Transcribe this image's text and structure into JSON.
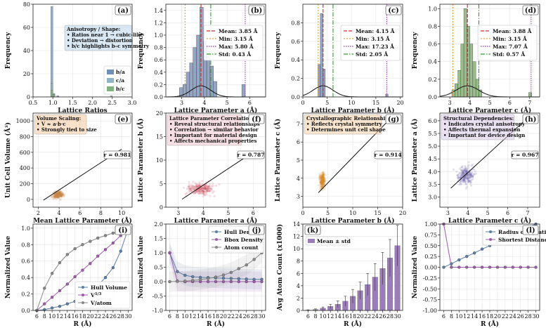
{
  "chart_data": [
    {
      "id": "a",
      "type": "histogram",
      "panel_label": "(a)",
      "xlabel": "Lattice Ratios",
      "ylabel": "Frequency",
      "xlim": [
        0.5,
        3.0
      ],
      "ylim": [
        0,
        80
      ],
      "xticks": [
        "0.5",
        "1.0",
        "1.5",
        "2.0",
        "2.5",
        "3.0"
      ],
      "yticks": [
        "0",
        "20",
        "40",
        "60",
        "80"
      ],
      "series": [
        {
          "name": "b/a",
          "color": "#6f8fb8",
          "bins": [
            [
              0.95,
              1.0,
              78
            ],
            [
              1.0,
              1.05,
              3
            ],
            [
              1.1,
              1.15,
              1
            ]
          ]
        },
        {
          "name": "c/a",
          "color": "#8fb5c7",
          "bins": [
            [
              0.95,
              1.0,
              12
            ],
            [
              1.0,
              1.05,
              2
            ]
          ]
        },
        {
          "name": "b/c",
          "color": "#7fb27f",
          "bins": [
            [
              0.95,
              1.0,
              6
            ],
            [
              1.0,
              1.05,
              2
            ],
            [
              2.45,
              2.5,
              1
            ]
          ]
        }
      ],
      "annotation_title": "Anisotropy / Shape:",
      "annotation_lines": [
        "• Ratios near 1 → cubic-like",
        "• Deviation → distortion",
        "• b/c highlights b–c symmetry"
      ]
    },
    {
      "id": "b",
      "type": "histogram",
      "panel_label": "(b)",
      "xlabel": "Lattice Parameter a (Å)",
      "ylabel": "Frequency",
      "xlim": [
        2.3,
        6.7
      ],
      "ylim": [
        0,
        1.5
      ],
      "xticks": [
        "3",
        "4",
        "5",
        "6"
      ],
      "yticks": [
        "0.0",
        "0.2",
        "0.4",
        "0.6",
        "0.8",
        "1.0",
        "1.2",
        "1.4"
      ],
      "bar_color": "#7b8fb5",
      "bins": [
        [
          2.9,
          3.05,
          0.15
        ],
        [
          3.05,
          3.2,
          0.2
        ],
        [
          3.2,
          3.35,
          0.4
        ],
        [
          3.35,
          3.5,
          0.55
        ],
        [
          3.5,
          3.65,
          0.8
        ],
        [
          3.65,
          3.8,
          1.0
        ],
        [
          3.8,
          3.95,
          1.45
        ],
        [
          3.95,
          4.1,
          0.9
        ],
        [
          4.1,
          4.25,
          0.75
        ],
        [
          4.25,
          4.4,
          0.5
        ],
        [
          4.4,
          4.55,
          0.25
        ],
        [
          5.65,
          5.8,
          0.2
        ]
      ],
      "mean": 3.85,
      "min": 3.15,
      "max": 5.8,
      "std": 0.43,
      "legend": [
        "Mean: 3.85 Å",
        "Min: 3.15 Å",
        "Max: 5.80 Å",
        "Std: 0.43 Å"
      ]
    },
    {
      "id": "c",
      "type": "histogram",
      "panel_label": "(c)",
      "xlabel": "Lattice Parameter b (Å)",
      "ylabel": "Frequency",
      "xlim": [
        0,
        20.5
      ],
      "ylim": [
        0,
        1.0
      ],
      "xticks": [
        "0",
        "5",
        "10",
        "15",
        "20"
      ],
      "yticks": [
        "0.0",
        "0.2",
        "0.4",
        "0.6",
        "0.8"
      ],
      "bar_color": "#7b8fb5",
      "bins": [
        [
          3.1,
          3.6,
          0.35
        ],
        [
          3.6,
          4.1,
          0.9
        ],
        [
          4.1,
          4.6,
          0.3
        ],
        [
          17.0,
          17.5,
          0.03
        ]
      ],
      "mean": 4.15,
      "min": 3.15,
      "max": 17.23,
      "std": 2.05,
      "legend": [
        "Mean: 4.15 Å",
        "Min: 3.15 Å",
        "Max: 17.23 Å",
        "Std: 2.05 Å"
      ]
    },
    {
      "id": "d",
      "type": "histogram",
      "panel_label": "(d)",
      "xlabel": "Lattice Parameter c (Å)",
      "ylabel": "Frequency",
      "xlim": [
        2.5,
        7.5
      ],
      "ylim": [
        0,
        1.05
      ],
      "xticks": [
        "3",
        "4",
        "5",
        "6",
        "7"
      ],
      "yticks": [
        "0.0",
        "0.2",
        "0.4",
        "0.6",
        "0.8",
        "1.0"
      ],
      "bar_color": "#7fae6f",
      "bins": [
        [
          3.1,
          3.25,
          0.08
        ],
        [
          3.25,
          3.4,
          0.15
        ],
        [
          3.4,
          3.55,
          0.3
        ],
        [
          3.55,
          3.7,
          0.6
        ],
        [
          3.7,
          3.85,
          1.0
        ],
        [
          3.85,
          4.0,
          0.8
        ],
        [
          4.0,
          4.15,
          0.6
        ],
        [
          4.15,
          4.3,
          0.4
        ],
        [
          4.3,
          4.45,
          0.2
        ],
        [
          4.45,
          4.6,
          0.08
        ],
        [
          6.95,
          7.1,
          0.05
        ]
      ],
      "mean": 3.88,
      "min": 3.15,
      "max": 7.07,
      "std": 0.57,
      "legend": [
        "Mean: 3.88 Å",
        "Min: 3.15 Å",
        "Max: 7.07 Å",
        "Std: 0.57 Å"
      ]
    },
    {
      "id": "e",
      "type": "scatter",
      "panel_label": "(e)",
      "xlabel": "Mean Lattice Parameter (Å)",
      "ylabel": "Unit Cell Volume (Å³)",
      "xlim": [
        1.5,
        11
      ],
      "ylim": [
        -100,
        1100
      ],
      "xticks": [
        "2",
        "4",
        "6",
        "8",
        "10"
      ],
      "yticks": [
        "0",
        "200",
        "400",
        "600",
        "800",
        "1000"
      ],
      "point_color": "#c9854a",
      "cluster": {
        "x": 3.9,
        "y": 60,
        "sx": 0.35,
        "sy": 25
      },
      "fit": [
        [
          2.5,
          -10
        ],
        [
          10,
          640
        ]
      ],
      "r_label": "r = 0.981",
      "annotation_title": "Volume Scaling:",
      "annotation_lines": [
        "• V ≈ a·b·c",
        "• Strongly tied to size"
      ]
    },
    {
      "id": "f",
      "type": "scatter",
      "panel_label": "(f)",
      "xlabel": "Lattice Parameter a (Å)",
      "ylabel": "Lattice Parameter b (Å)",
      "xlim": [
        2.5,
        6.5
      ],
      "ylim": [
        0,
        20
      ],
      "xticks": [
        "3",
        "4",
        "5",
        "6"
      ],
      "yticks": [
        "0",
        "5",
        "10",
        "15",
        "20"
      ],
      "point_color": "#c94a5a",
      "cluster": {
        "x": 3.9,
        "y": 3.9,
        "sx": 0.4,
        "sy": 0.4
      },
      "fit": [
        [
          3.15,
          1.7
        ],
        [
          5.8,
          11.0
        ]
      ],
      "r_label": "r = 0.787",
      "annotation_title": "Lattice Parameter Correlations:",
      "annotation_lines": [
        "• Reveal structural relationships",
        "• Correlation → similar behavior",
        "• Important for material design",
        "• Affects mechanical properties"
      ]
    },
    {
      "id": "g",
      "type": "scatter",
      "panel_label": "(g)",
      "xlabel": "Lattice Parameter b (Å)",
      "ylabel": "Lattice Parameter c (Å)",
      "xlim": [
        0,
        20
      ],
      "ylim": [
        2.4,
        7.6
      ],
      "xticks": [
        "0",
        "5",
        "10",
        "15",
        "20"
      ],
      "yticks": [
        "3",
        "4",
        "5",
        "6",
        "7"
      ],
      "point_color": "#d98a2e",
      "cluster": {
        "x": 3.9,
        "y": 3.9,
        "sx": 0.35,
        "sy": 0.3
      },
      "fit": [
        [
          3.1,
          3.2
        ],
        [
          17.2,
          7.2
        ]
      ],
      "r_label": "r = 0.914",
      "annotation_title": "Crystallographic Relationships:",
      "annotation_lines": [
        "• Reflects crystal symmetry",
        "• Determines unit cell shape"
      ]
    },
    {
      "id": "h",
      "type": "scatter",
      "panel_label": "(h)",
      "xlabel": "Lattice Parameter c (Å)",
      "ylabel": "Lattice Parameter a (Å)",
      "xlim": [
        2.6,
        7.6
      ],
      "ylim": [
        2.6,
        6.3
      ],
      "xticks": [
        "3",
        "4",
        "5",
        "6",
        "7"
      ],
      "yticks": [
        "3.0",
        "3.5",
        "4.0",
        "4.5",
        "5.0",
        "5.5",
        "6.0"
      ],
      "point_color": "#6a5ca8",
      "cluster": {
        "x": 3.9,
        "y": 3.85,
        "sx": 0.3,
        "sy": 0.22
      },
      "fit": [
        [
          3.15,
          3.35
        ],
        [
          7.05,
          6.15
        ]
      ],
      "r_label": "r = 0.967",
      "annotation_title": "Structural Dependencies:",
      "annotation_lines": [
        "• Indicates crystal anisotropy",
        "• Affects thermal expansion",
        "• Important for device design"
      ]
    },
    {
      "id": "i",
      "type": "line",
      "panel_label": "(i)",
      "xlabel": "R (Å)",
      "ylabel": "Normalized Value",
      "x": [
        6,
        8,
        10,
        12,
        14,
        16,
        18,
        20,
        22,
        24,
        26,
        28,
        30
      ],
      "xlim": [
        5,
        31
      ],
      "ylim": [
        0,
        1.05
      ],
      "xticks": [
        "6",
        "8",
        "10",
        "12",
        "14",
        "16",
        "18",
        "20",
        "22",
        "24",
        "26",
        "28",
        "30"
      ],
      "yticks": [
        "0.0",
        "0.2",
        "0.4",
        "0.6",
        "0.8",
        "1.0"
      ],
      "series": [
        {
          "name": "Hull Volume",
          "color": "#5b7fa8",
          "values": [
            0.0,
            0.01,
            0.03,
            0.05,
            0.08,
            0.11,
            0.16,
            0.22,
            0.3,
            0.4,
            0.52,
            0.72,
            1.0
          ]
        },
        {
          "name": "V1/3",
          "color": "#9c5ca8",
          "values": [
            0.0,
            0.08,
            0.16,
            0.24,
            0.32,
            0.41,
            0.49,
            0.57,
            0.66,
            0.74,
            0.82,
            0.91,
            1.0
          ]
        },
        {
          "name": "V/atom",
          "color": "#888888",
          "values": [
            0.0,
            0.27,
            0.45,
            0.58,
            0.68,
            0.75,
            0.8,
            0.84,
            0.88,
            0.91,
            0.94,
            0.96,
            1.0
          ]
        }
      ],
      "legend": [
        "Hull Volume",
        "V",
        "V/atom"
      ],
      "legend_sup": "1/3"
    },
    {
      "id": "j",
      "type": "line",
      "panel_label": "(j)",
      "xlabel": "R (Å)",
      "ylabel": "Normalized Value",
      "x": [
        6,
        8,
        10,
        12,
        14,
        16,
        18,
        20,
        22,
        24,
        26,
        28,
        30
      ],
      "xlim": [
        5,
        31
      ],
      "ylim": [
        -1.0,
        2.0
      ],
      "xticks": [
        "6",
        "8",
        "10",
        "12",
        "14",
        "16",
        "18",
        "20",
        "22",
        "24",
        "26",
        "28",
        "30"
      ],
      "yticks": [
        "-1.0",
        "-0.5",
        "0.0",
        "0.5",
        "1.0",
        "1.5",
        "2.0"
      ],
      "series": [
        {
          "name": "Hull Density",
          "color": "#5b7fa8",
          "values": [
            1.0,
            0.35,
            0.22,
            0.17,
            0.15,
            0.14,
            0.13,
            0.12,
            0.11,
            0.1,
            0.09,
            0.08,
            0.08
          ]
        },
        {
          "name": "Bbox Density",
          "color": "#9c5ca8",
          "values": [
            1.0,
            0.02,
            0.0,
            0.0,
            0.0,
            0.0,
            0.0,
            0.0,
            0.0,
            0.0,
            0.0,
            0.0,
            0.0
          ]
        },
        {
          "name": "Atom count",
          "color": "#888888",
          "values": [
            0.0,
            0.01,
            0.02,
            0.04,
            0.07,
            0.11,
            0.16,
            0.23,
            0.32,
            0.45,
            0.58,
            0.77,
            1.0
          ]
        }
      ],
      "legend": [
        "Hull Density",
        "Bbox Density",
        "Atom count"
      ]
    },
    {
      "id": "k",
      "type": "bar",
      "panel_label": "(k)",
      "xlabel": "R (Å)",
      "ylabel": "Avg Atom Count (x1000)",
      "categories": [
        "6",
        "8",
        "10",
        "12",
        "14",
        "16",
        "18",
        "20",
        "22",
        "24",
        "26",
        "28",
        "30"
      ],
      "values": [
        0.05,
        0.15,
        0.35,
        0.65,
        1.0,
        1.5,
        2.3,
        3.2,
        4.2,
        5.4,
        6.8,
        8.5,
        10.5
      ],
      "errors": [
        0.05,
        0.1,
        0.2,
        0.35,
        0.55,
        0.8,
        1.1,
        1.4,
        1.8,
        2.2,
        2.6,
        3.0,
        3.3
      ],
      "color": "#9c7cb8",
      "ylim": [
        0,
        14
      ],
      "yticks": [
        "0",
        "2",
        "4",
        "6",
        "8",
        "10",
        "12",
        "14"
      ],
      "legend": [
        "Mean ± std"
      ]
    },
    {
      "id": "l",
      "type": "line",
      "panel_label": "(l)",
      "xlabel": "R (Å)",
      "ylabel": "Normalized Value",
      "x": [
        6,
        8,
        10,
        12,
        14,
        16,
        18,
        20,
        22,
        24,
        26,
        28,
        30
      ],
      "xlim": [
        5,
        31
      ],
      "ylim": [
        -1.0,
        1.0
      ],
      "xticks": [
        "6",
        "8",
        "10",
        "12",
        "14",
        "16",
        "18",
        "20",
        "22",
        "24",
        "26",
        "28",
        "30"
      ],
      "yticks": [
        "-1.00",
        "-0.75",
        "-0.50",
        "-0.25",
        "0.00",
        "0.25",
        "0.50",
        "0.75",
        "1.00"
      ],
      "series": [
        {
          "name": "Radius of Gyration",
          "color": "#5b7fa8",
          "values": [
            0.0,
            0.08,
            0.17,
            0.25,
            0.33,
            0.42,
            0.5,
            0.58,
            0.67,
            0.75,
            0.83,
            0.92,
            1.0
          ]
        },
        {
          "name": "Shortest Distance",
          "color": "#9c5ca8",
          "values": [
            1.0,
            0.0,
            0.0,
            0.0,
            0.0,
            0.0,
            0.0,
            0.0,
            0.0,
            0.0,
            0.0,
            0.0,
            0.0
          ]
        }
      ],
      "legend": [
        "Radius of Gyration",
        "Shortest Distance"
      ]
    }
  ]
}
